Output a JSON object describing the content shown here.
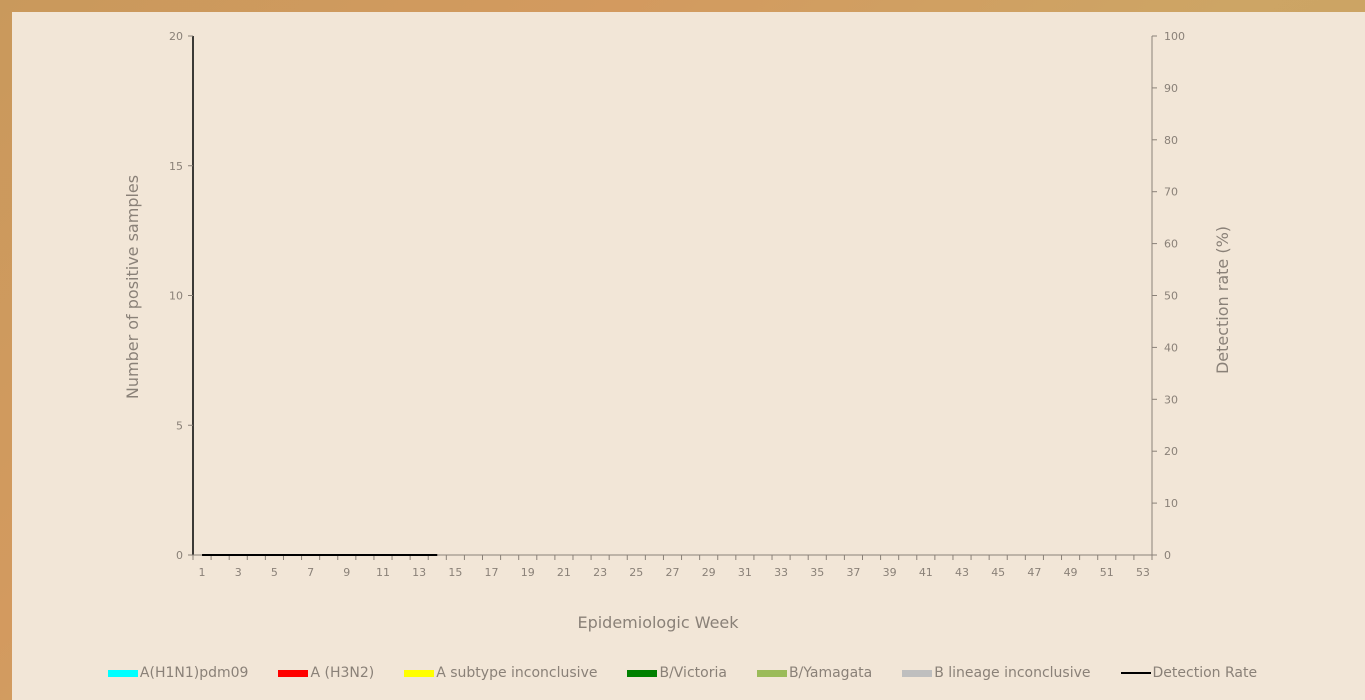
{
  "chart_data": {
    "type": "bar",
    "xlabel": "Epidemiologic Week",
    "ylabel": "Number of positive samples",
    "y2label": "Detection rate (%)",
    "ylim": [
      0,
      20
    ],
    "y2lim": [
      0,
      100
    ],
    "yticks": [
      0,
      5,
      10,
      15,
      20
    ],
    "y2ticks": [
      0,
      10,
      20,
      30,
      40,
      50,
      60,
      70,
      80,
      90,
      100
    ],
    "x_tick_labels": [
      1,
      3,
      5,
      7,
      9,
      11,
      13,
      15,
      17,
      19,
      21,
      23,
      25,
      27,
      29,
      31,
      33,
      35,
      37,
      39,
      41,
      43,
      45,
      47,
      49,
      51,
      53
    ],
    "weeks": 53,
    "grid": false,
    "legend_position": "bottom",
    "series": [
      {
        "name": "A(H1N1)pdm09",
        "kind": "bar",
        "color": "#00ffff",
        "values": [
          0,
          0,
          0,
          0,
          0,
          0,
          0,
          0,
          0,
          0,
          0,
          0,
          0,
          0
        ]
      },
      {
        "name": "A (H3N2)",
        "kind": "bar",
        "color": "#ff0000",
        "values": [
          0,
          0,
          0,
          0,
          0,
          0,
          0,
          0,
          0,
          0,
          0,
          0,
          0,
          0
        ]
      },
      {
        "name": "A subtype inconclusive",
        "kind": "bar",
        "color": "#ffff00",
        "values": [
          0,
          0,
          0,
          0,
          0,
          0,
          0,
          0,
          0,
          0,
          0,
          0,
          0,
          0
        ]
      },
      {
        "name": "B/Victoria",
        "kind": "bar",
        "color": "#008000",
        "values": [
          0,
          0,
          0,
          0,
          0,
          0,
          0,
          0,
          0,
          0,
          0,
          0,
          0,
          0
        ]
      },
      {
        "name": "B/Yamagata",
        "kind": "bar",
        "color": "#9bbb59",
        "values": [
          0,
          0,
          0,
          0,
          0,
          0,
          0,
          0,
          0,
          0,
          0,
          0,
          0,
          0
        ]
      },
      {
        "name": "B lineage inconclusive",
        "kind": "bar",
        "color": "#bfbfbf",
        "values": [
          0,
          0,
          0,
          0,
          0,
          0,
          0,
          0,
          0,
          0,
          0,
          0,
          0,
          0
        ]
      },
      {
        "name": "Detection Rate",
        "kind": "line",
        "color": "#000000",
        "values": [
          0,
          0,
          0,
          0,
          0,
          0,
          0,
          0,
          0,
          0,
          0,
          0,
          0,
          0
        ]
      }
    ]
  }
}
